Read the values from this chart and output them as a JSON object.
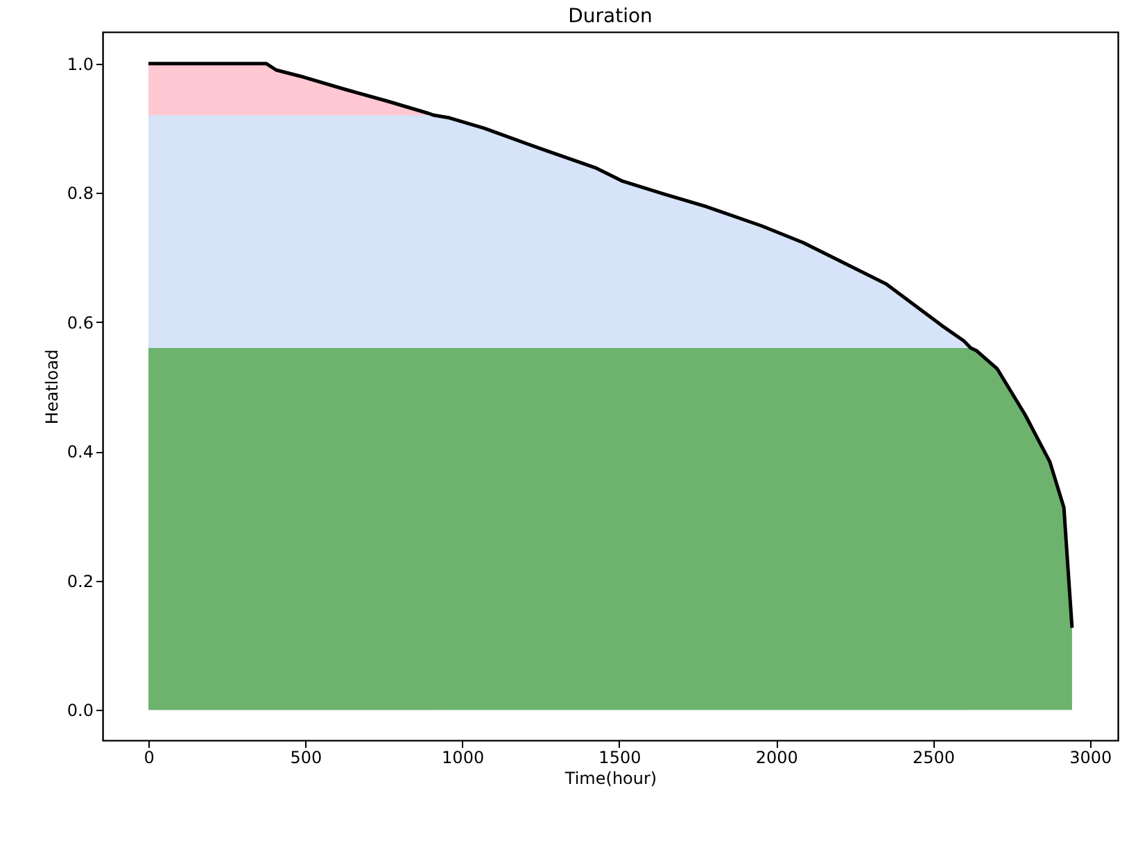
{
  "chart_data": {
    "type": "line",
    "title": "Duration",
    "xlabel": "Time(hour)",
    "ylabel": "Heatload",
    "xlim": [
      -146,
      3089
    ],
    "xticks": [
      0,
      500,
      1000,
      1500,
      2000,
      2500,
      3000
    ],
    "ylim": [
      -0.047,
      1.049
    ],
    "yticks": [
      {
        "value": 0,
        "label": "0.0"
      },
      0.2,
      0.4,
      0.6,
      0.8,
      {
        "value": 1,
        "label": "1.0"
      }
    ],
    "grid": false,
    "marker": "none",
    "line_style": "solid",
    "series": [
      {
        "type": "area",
        "color": "#ffc8d2",
        "x": [
          0,
          375,
          407,
          495,
          627,
          760,
          892,
          910
        ],
        "values": [
          1.0,
          1.0,
          0.99,
          0.979,
          0.96,
          0.942,
          0.923,
          0.92
        ]
      },
      {
        "type": "area",
        "color": "#d6e3f8",
        "x": [
          0,
          910,
          959,
          1069,
          1246,
          1423,
          1511,
          1644,
          1776,
          1953,
          2086,
          2218,
          2351,
          2439,
          2527,
          2598,
          2620
        ],
        "values": [
          0.92,
          0.92,
          0.916,
          0.9,
          0.869,
          0.839,
          0.818,
          0.798,
          0.779,
          0.749,
          0.723,
          0.691,
          0.659,
          0.627,
          0.595,
          0.571,
          0.56
        ]
      },
      {
        "type": "area",
        "color": "#6db36d",
        "x": [
          0,
          2620,
          2638,
          2704,
          2793,
          2872,
          2917,
          2925,
          2943
        ],
        "values": [
          0.56,
          0.56,
          0.556,
          0.528,
          0.457,
          0.384,
          0.313,
          0.255,
          0.127
        ]
      },
      {
        "color": "#000000",
        "x": [
          0,
          375,
          407,
          495,
          627,
          760,
          892,
          910,
          959,
          1069,
          1246,
          1423,
          1511,
          1644,
          1776,
          1953,
          2086,
          2218,
          2351,
          2439,
          2527,
          2598,
          2620,
          2638,
          2704,
          2793,
          2872,
          2917,
          2925,
          2943
        ],
        "values": [
          1.0,
          1.0,
          0.99,
          0.979,
          0.96,
          0.942,
          0.923,
          0.92,
          0.916,
          0.9,
          0.869,
          0.839,
          0.818,
          0.798,
          0.779,
          0.749,
          0.723,
          0.691,
          0.659,
          0.627,
          0.595,
          0.571,
          0.56,
          0.556,
          0.528,
          0.457,
          0.384,
          0.313,
          0.255,
          0.127
        ]
      }
    ]
  }
}
